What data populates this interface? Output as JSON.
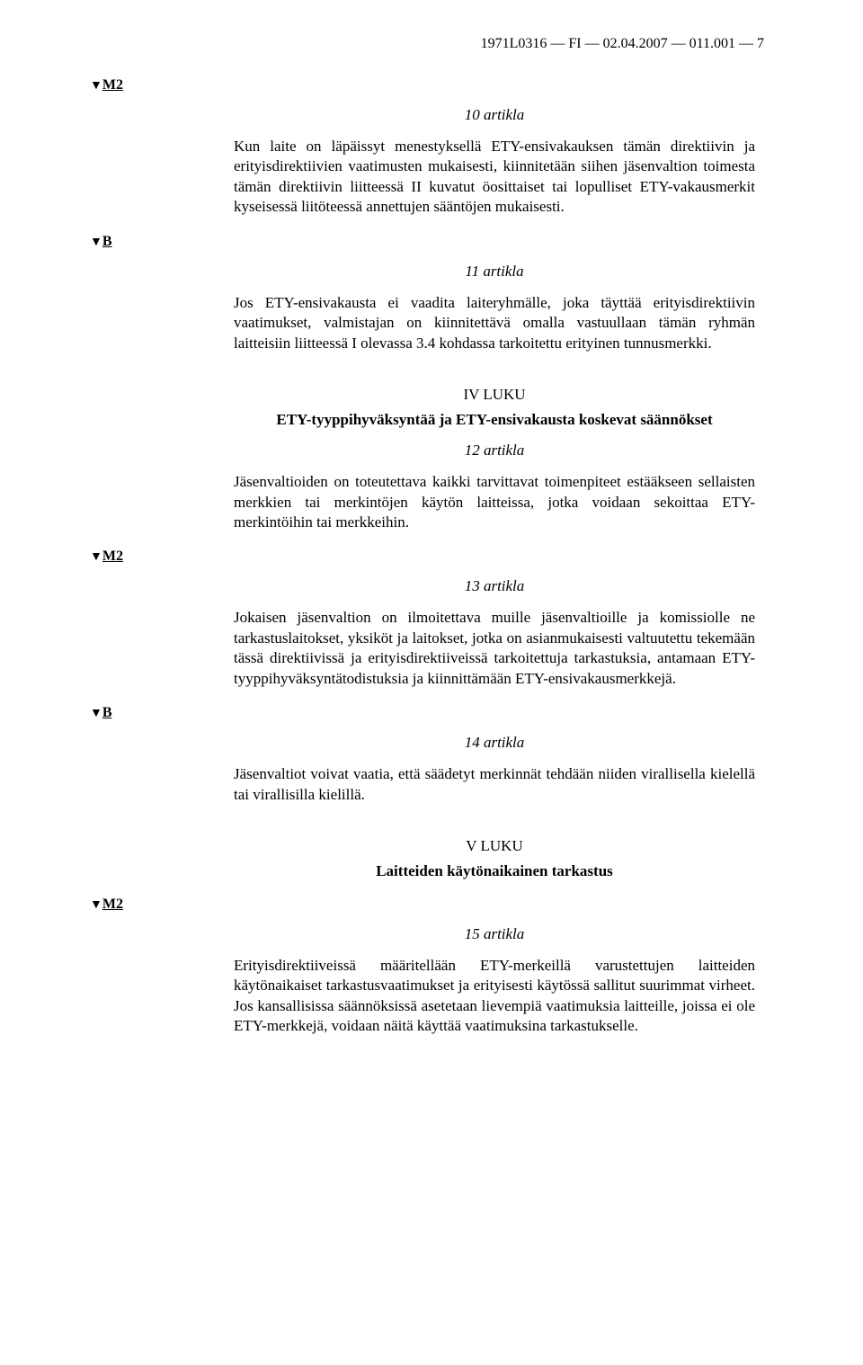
{
  "header": "1971L0316 — FI — 02.04.2007 — 011.001 — 7",
  "markers": {
    "m2": {
      "triangle": "▼",
      "label": "M2"
    },
    "b": {
      "triangle": "▼",
      "label": "B"
    }
  },
  "articles": {
    "a10": {
      "title": "10 artikla",
      "para": "Kun laite on läpäissyt menestyksellä ETY-ensivakauksen tämän direktiivin ja erityisdirektiivien vaatimusten mukaisesti, kiinnitetään siihen jäsenvaltion toimesta tämän direktiivin liitteessä II kuvatut öosittaiset tai lopulliset ETY-vakausmerkit kyseisessä liitöteessä annettujen sääntöjen mukaisesti."
    },
    "a11": {
      "title": "11 artikla",
      "para": "Jos ETY-ensivakausta ei vaadita laiteryhmälle, joka täyttää erityisdirektiivin vaatimukset, valmistajan on kiinnitettävä omalla vastuullaan tämän ryhmän laitteisiin liitteessä I olevassa 3.4 kohdassa tarkoitettu erityinen tunnusmerkki."
    },
    "a12": {
      "title": "12 artikla",
      "para": "Jäsenvaltioiden on toteutettava kaikki tarvittavat toimenpiteet estääkseen sellaisten merkkien tai merkintöjen käytön laitteissa, jotka voidaan sekoittaa ETY-merkintöihin tai merkkeihin."
    },
    "a13": {
      "title": "13 artikla",
      "para": "Jokaisen jäsenvaltion on ilmoitettava muille jäsenvaltioille ja komissiolle ne tarkastuslaitokset, yksiköt ja laitokset, jotka on asianmukaisesti valtuutettu tekemään tässä direktiivissä ja erityisdirektiiveissä tarkoitettuja tarkastuksia, antamaan ETY-tyyppihyväksyntätodistuksia ja kiinnittämään ETY-ensivakausmerkkejä."
    },
    "a14": {
      "title": "14 artikla",
      "para": "Jäsenvaltiot voivat vaatia, että säädetyt merkinnät tehdään niiden virallisella kielellä tai virallisilla kielillä."
    },
    "a15": {
      "title": "15 artikla",
      "para": "Erityisdirektiiveissä määritellään ETY-merkeillä varustettujen laitteiden käytönaikaiset tarkastusvaatimukset ja erityisesti käytössä sallitut suurimmat virheet. Jos kansallisissa säännöksissä asetetaan lievempiä vaatimuksia laitteille, joissa ei ole ETY-merkkejä, voidaan näitä käyttää vaatimuksina tarkastukselle."
    }
  },
  "chapters": {
    "ch4": {
      "num": "IV LUKU",
      "title": "ETY-tyyppihyväksyntää ja ETY-ensivakausta koskevat säännökset"
    },
    "ch5": {
      "num": "V LUKU",
      "title": "Laitteiden käytönaikainen tarkastus"
    }
  }
}
